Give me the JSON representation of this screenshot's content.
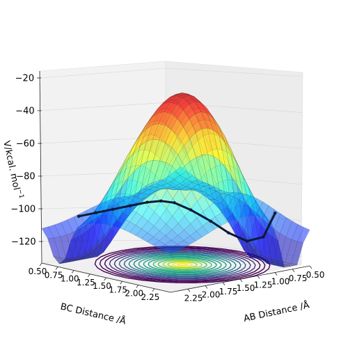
{
  "chart_data": {
    "type": "surface3d",
    "title": "",
    "zlabel": "V/kcal. mol",
    "zlabel_sup": "−1",
    "xlabel": "BC Distance /Å",
    "ylabel": "AB Distance /Å",
    "z_ticks": [
      -20,
      -40,
      -60,
      -80,
      -100,
      -120
    ],
    "z_tick_labels": [
      "−20",
      "−40",
      "−60",
      "−80",
      "−100",
      "−120"
    ],
    "z_range": [
      -135,
      -18
    ],
    "bc_ticks": [
      0.5,
      0.75,
      1.0,
      1.25,
      1.5,
      1.75,
      2.0,
      2.25
    ],
    "bc_tick_labels": [
      "0.50",
      "0.75",
      "1.00",
      "1.25",
      "1.50",
      "1.75",
      "2.00",
      "2.25"
    ],
    "ab_ticks": [
      0.5,
      0.75,
      1.0,
      1.25,
      1.5,
      1.75,
      2.0,
      2.25
    ],
    "ab_tick_labels": [
      "0.50",
      "0.75",
      "1.00",
      "1.25",
      "1.50",
      "1.75",
      "2.00",
      "2.25"
    ],
    "surface_colormap": "jet",
    "contour_colormap": "viridis",
    "grid": true,
    "trajectory": {
      "color": "#0a1a3a",
      "description": "black path along the valley from the entrance channel over the saddle into the product well",
      "points": [
        {
          "bc": 0.75,
          "ab": 2.2,
          "v": -103
        },
        {
          "bc": 0.8,
          "ab": 2.0,
          "v": -102
        },
        {
          "bc": 0.85,
          "ab": 1.8,
          "v": -101
        },
        {
          "bc": 0.9,
          "ab": 1.6,
          "v": -100
        },
        {
          "bc": 0.95,
          "ab": 1.4,
          "v": -99
        },
        {
          "bc": 1.0,
          "ab": 1.25,
          "v": -99
        },
        {
          "bc": 1.1,
          "ab": 1.15,
          "v": -100
        },
        {
          "bc": 1.25,
          "ab": 1.05,
          "v": -104
        },
        {
          "bc": 1.45,
          "ab": 0.95,
          "v": -110
        },
        {
          "bc": 1.65,
          "ab": 0.88,
          "v": -116
        },
        {
          "bc": 1.85,
          "ab": 0.8,
          "v": -120
        },
        {
          "bc": 2.05,
          "ab": 0.75,
          "v": -116
        },
        {
          "bc": 2.2,
          "ab": 0.72,
          "v": -100
        }
      ]
    }
  }
}
